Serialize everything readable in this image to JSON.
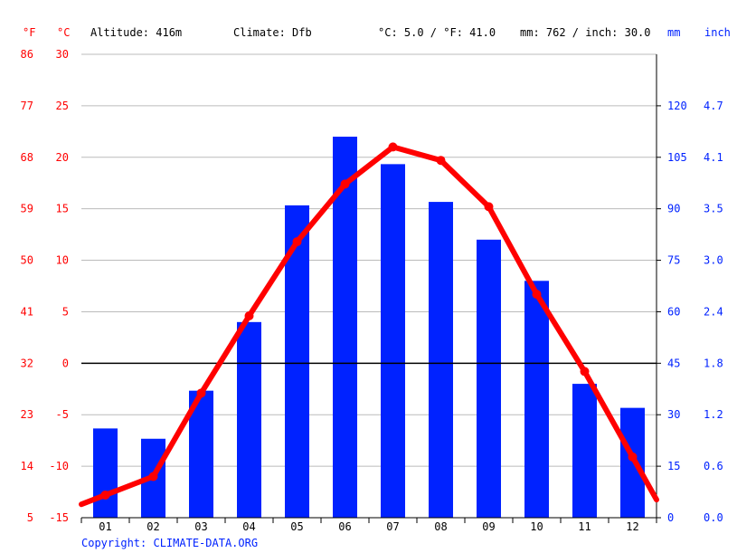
{
  "header": {
    "unit_f": "°F",
    "unit_c": "°C",
    "altitude": "Altitude: 416m",
    "climate": "Climate: Dfb",
    "avg_temp": "°C: 5.0 / °F: 41.0",
    "precip_total": "mm: 762 / inch: 30.0",
    "unit_mm": "mm",
    "unit_inch": "inch"
  },
  "copyright": "Copyright: CLIMATE-DATA.ORG",
  "colors": {
    "temperature": "#ff0000",
    "precipitation": "#0022ff",
    "grid": "#bbbbbb",
    "zero_line": "#000000"
  },
  "chart_data": {
    "type": "bar+line",
    "categories": [
      "01",
      "02",
      "03",
      "04",
      "05",
      "06",
      "07",
      "08",
      "09",
      "10",
      "11",
      "12"
    ],
    "series": [
      {
        "axis": "precipitation",
        "type": "bar",
        "unit": "mm",
        "values": [
          26,
          23,
          37,
          57,
          91,
          111,
          103,
          92,
          81,
          69,
          39,
          32
        ]
      },
      {
        "axis": "temperature",
        "type": "line",
        "unit": "°C",
        "values": [
          -12.8,
          -11.0,
          -2.9,
          4.6,
          11.8,
          17.4,
          21.0,
          19.7,
          15.2,
          6.7,
          -0.8,
          -9.1
        ]
      }
    ],
    "temp_axis": {
      "celsius_ticks": [
        30,
        25,
        20,
        15,
        10,
        5,
        0,
        -5,
        -10,
        -15
      ],
      "fahrenheit_ticks": [
        86,
        77,
        68,
        59,
        50,
        41,
        32,
        23,
        14,
        5
      ],
      "ylim": [
        -15,
        30
      ]
    },
    "precip_axis": {
      "mm_ticks": [
        120,
        105,
        90,
        75,
        60,
        45,
        30,
        15,
        0
      ],
      "inch_ticks": [
        "4.7",
        "4.1",
        "3.5",
        "3.0",
        "2.4",
        "1.8",
        "1.2",
        "0.6",
        "0.0"
      ],
      "ylim": [
        0,
        135
      ]
    },
    "grid": true
  }
}
